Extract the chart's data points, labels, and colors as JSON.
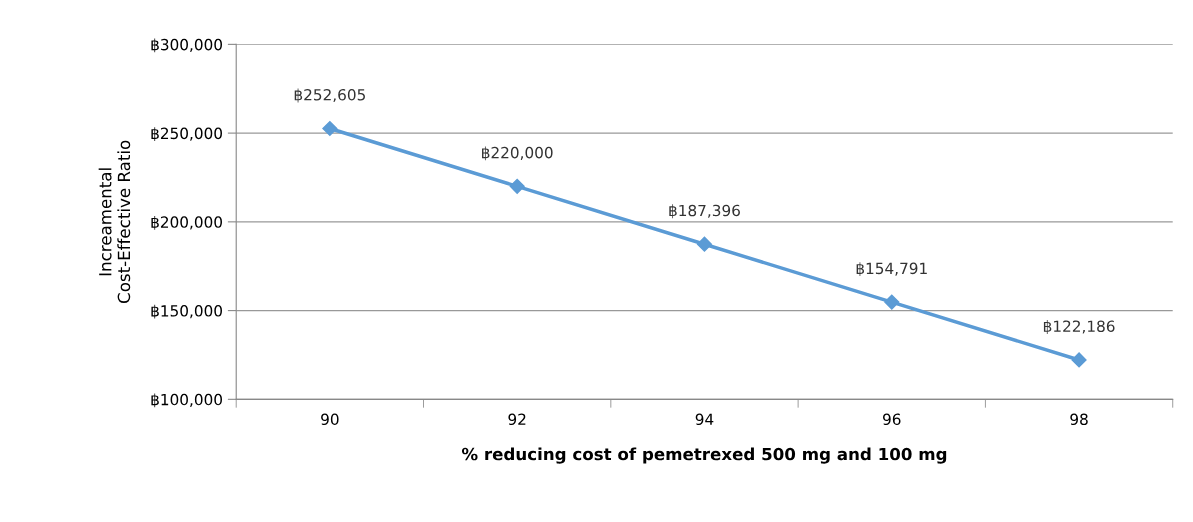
{
  "chart_data": {
    "type": "line",
    "xlabel": "% reducing cost of pemetrexed 500 mg and 100 mg",
    "ylabel": "Increamental\nCost-Effective Ratio",
    "categories": [
      "90",
      "92",
      "94",
      "96",
      "98"
    ],
    "series": [
      {
        "color": "#5b9bd5",
        "values": [
          252605,
          220000,
          187396,
          154791,
          122186
        ],
        "value_labels": [
          "฿252,605",
          "฿220,000",
          "฿187,396",
          "฿154,791",
          "฿122,186"
        ]
      }
    ],
    "ylim": [
      100000,
      300000
    ],
    "yticks": [
      {
        "value": 100000,
        "label": "฿100,000"
      },
      {
        "value": 150000,
        "label": "฿150,000"
      },
      {
        "value": 200000,
        "label": "฿200,000"
      },
      {
        "value": 250000,
        "label": "฿250,000"
      },
      {
        "value": 300000,
        "label": "฿300,000"
      }
    ],
    "grid": "y",
    "marker": "diamond",
    "line_style": "solid",
    "legend": false
  }
}
